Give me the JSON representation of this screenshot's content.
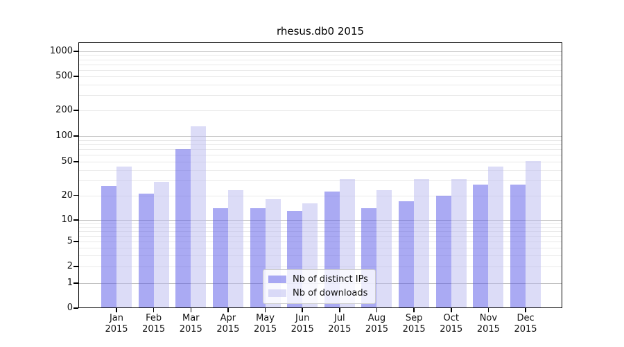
{
  "chart_data": {
    "type": "bar",
    "title": "rhesus.db0 2015",
    "year_label": "2015",
    "categories": [
      "Jan",
      "Feb",
      "Mar",
      "Apr",
      "May",
      "Jun",
      "Jul",
      "Aug",
      "Sep",
      "Oct",
      "Nov",
      "Dec"
    ],
    "series": [
      {
        "name": "Nb of distinct IPs",
        "color": "#5555e8",
        "values": [
          26,
          21,
          70,
          14,
          14,
          13,
          22,
          14,
          17,
          20,
          27,
          27
        ]
      },
      {
        "name": "Nb of downloads",
        "color": "#b9b9f0",
        "values": [
          44,
          29,
          130,
          23,
          18,
          16,
          31,
          23,
          31,
          31,
          44,
          51
        ]
      }
    ],
    "y_ticks": [
      0,
      1,
      2,
      5,
      10,
      20,
      50,
      100,
      200,
      500,
      1000
    ],
    "minor_grid_values": [
      3,
      4,
      6,
      7,
      8,
      9,
      30,
      40,
      60,
      70,
      80,
      90,
      300,
      400,
      600,
      700,
      800,
      900
    ],
    "major_grid_values": [
      1,
      10,
      100,
      1000
    ],
    "scale": "log-like (0,1,2,5,10,20,50,100,200,500,1000)",
    "grid": true,
    "legend_position": "lower-center",
    "colors": {
      "grid_major": "#c3c3c3",
      "grid_minor": "#e9e9e9",
      "axis": "#000000",
      "bar_opacity": 0.5
    }
  }
}
